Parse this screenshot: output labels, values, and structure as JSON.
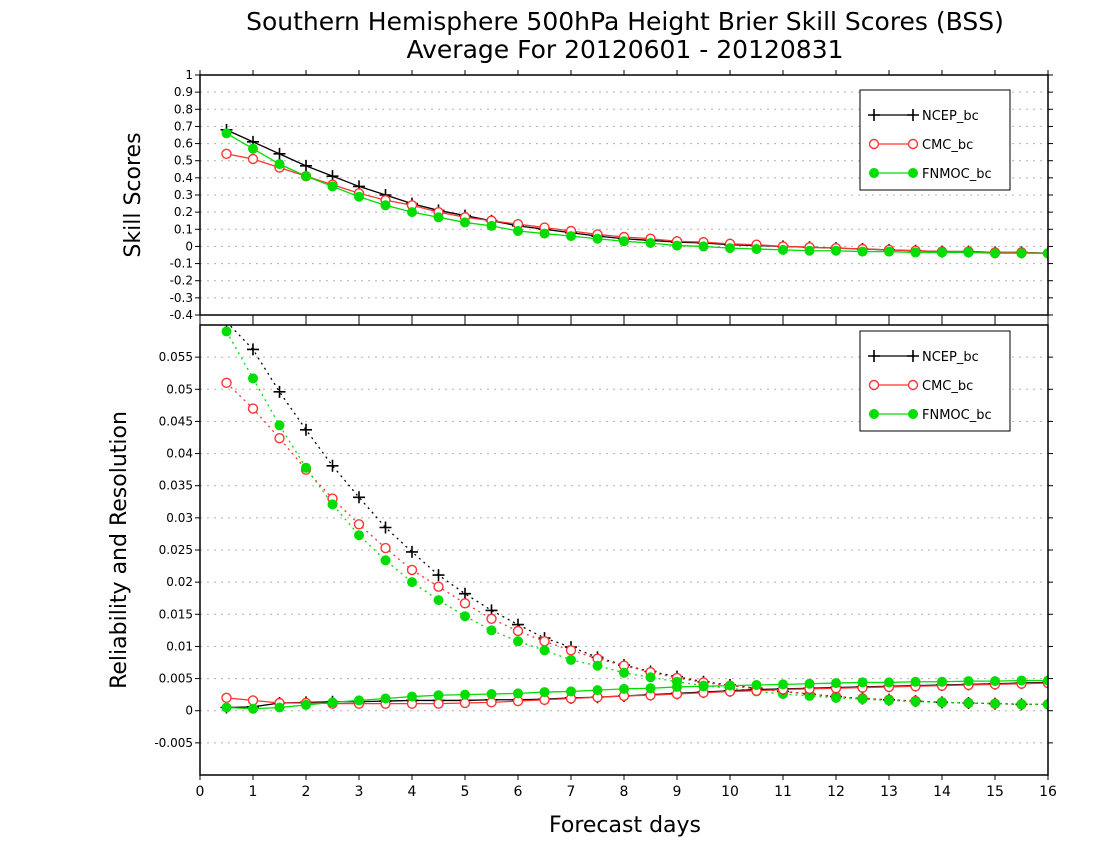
{
  "title_line1": "Southern Hemisphere 500hPa Height Brier Skill Scores (BSS)",
  "title_line2": "Average For 20120601 - 20120831",
  "colors": {
    "NCEP_bc": "#000000",
    "CMC_bc": "#ff3333",
    "FNMOC_bc": "#00dd00",
    "grid": "#b0b0b0"
  },
  "chart_data": [
    {
      "type": "line",
      "ylabel": "Skill Scores",
      "xlabel": "Forecast days",
      "xlim": [
        0,
        16
      ],
      "ylim": [
        -0.4,
        1
      ],
      "yticks": [
        1,
        0.9,
        0.8,
        0.7,
        0.6,
        0.5,
        0.4,
        0.3,
        0.2,
        0.1,
        0,
        -0.1,
        -0.2,
        -0.3,
        -0.4
      ],
      "ytick_labels": [
        "1",
        "0.9",
        "0.8",
        "0.7",
        "0.6",
        "0.5",
        "0.4",
        "0.3",
        "0.2",
        "0.1",
        "0",
        "-0.1",
        "-0.2",
        "-0.3",
        "-0.4"
      ],
      "legend_position": "top-right",
      "grid": true,
      "x": [
        0.5,
        1,
        1.5,
        2,
        2.5,
        3,
        3.5,
        4,
        4.5,
        5,
        5.5,
        6,
        6.5,
        7,
        7.5,
        8,
        8.5,
        9,
        9.5,
        10,
        10.5,
        11,
        11.5,
        12,
        12.5,
        13,
        13.5,
        14,
        14.5,
        15,
        15.5,
        16
      ],
      "series": [
        {
          "name": "NCEP_bc",
          "marker": "plus",
          "style": "solid",
          "values": [
            0.68,
            0.61,
            0.54,
            0.47,
            0.41,
            0.35,
            0.3,
            0.25,
            0.21,
            0.18,
            0.15,
            0.12,
            0.1,
            0.08,
            0.06,
            0.045,
            0.035,
            0.025,
            0.02,
            0.01,
            0.005,
            0.0,
            -0.005,
            -0.01,
            -0.015,
            -0.02,
            -0.025,
            -0.03,
            -0.03,
            -0.035,
            -0.035,
            -0.04
          ]
        },
        {
          "name": "CMC_bc",
          "marker": "circle-open",
          "style": "solid",
          "values": [
            0.54,
            0.51,
            0.46,
            0.41,
            0.36,
            0.31,
            0.27,
            0.24,
            0.2,
            0.17,
            0.15,
            0.13,
            0.11,
            0.09,
            0.07,
            0.055,
            0.045,
            0.03,
            0.025,
            0.015,
            0.01,
            0.0,
            -0.005,
            -0.01,
            -0.015,
            -0.02,
            -0.025,
            -0.03,
            -0.03,
            -0.035,
            -0.035,
            -0.04
          ]
        },
        {
          "name": "FNMOC_bc",
          "marker": "circle-filled",
          "style": "solid",
          "values": [
            0.66,
            0.57,
            0.48,
            0.41,
            0.35,
            0.29,
            0.24,
            0.2,
            0.17,
            0.14,
            0.12,
            0.09,
            0.075,
            0.06,
            0.045,
            0.03,
            0.02,
            0.005,
            0.0,
            -0.01,
            -0.015,
            -0.02,
            -0.025,
            -0.025,
            -0.03,
            -0.03,
            -0.035,
            -0.035,
            -0.035,
            -0.04,
            -0.04,
            -0.04
          ]
        }
      ]
    },
    {
      "type": "line",
      "ylabel": "Reliability and Resolution",
      "xlabel": "Forecast days",
      "xlim": [
        0,
        16
      ],
      "ylim": [
        -0.01,
        0.06
      ],
      "yticks": [
        0.055,
        0.05,
        0.045,
        0.04,
        0.035,
        0.03,
        0.025,
        0.02,
        0.015,
        0.01,
        0.005,
        0,
        -0.005
      ],
      "ytick_labels": [
        "0.055",
        "0.05",
        "0.045",
        "0.04",
        "0.035",
        "0.03",
        "0.025",
        "0.02",
        "0.015",
        "0.01",
        "0.005",
        "0",
        "-0.005"
      ],
      "xticks": [
        0,
        1,
        2,
        3,
        4,
        5,
        6,
        7,
        8,
        9,
        10,
        11,
        12,
        13,
        14,
        15,
        16
      ],
      "xtick_labels": [
        "0",
        "1",
        "2",
        "3",
        "4",
        "5",
        "6",
        "7",
        "8",
        "9",
        "10",
        "11",
        "12",
        "13",
        "14",
        "15",
        "16"
      ],
      "legend_position": "top-right",
      "grid": true,
      "x": [
        0.5,
        1,
        1.5,
        2,
        2.5,
        3,
        3.5,
        4,
        4.5,
        5,
        5.5,
        6,
        6.5,
        7,
        7.5,
        8,
        8.5,
        9,
        9.5,
        10,
        10.5,
        11,
        11.5,
        12,
        12.5,
        13,
        13.5,
        14,
        14.5,
        15,
        15.5,
        16
      ],
      "series": [
        {
          "name": "NCEP_bc",
          "metric": "Reliability",
          "marker": "plus",
          "style": "dotted",
          "values": [
            0.0605,
            0.0562,
            0.0496,
            0.0437,
            0.0381,
            0.0332,
            0.0285,
            0.0247,
            0.0211,
            0.0182,
            0.0156,
            0.0134,
            0.0113,
            0.0099,
            0.0083,
            0.0071,
            0.0061,
            0.0053,
            0.0045,
            0.004,
            0.0035,
            0.003,
            0.0026,
            0.0022,
            0.0019,
            0.0017,
            0.0015,
            0.0013,
            0.0012,
            0.0011,
            0.001,
            0.001
          ]
        },
        {
          "name": "CMC_bc",
          "metric": "Reliability",
          "marker": "circle-open",
          "style": "dotted",
          "values": [
            0.051,
            0.047,
            0.0424,
            0.0375,
            0.033,
            0.029,
            0.0253,
            0.0219,
            0.0193,
            0.0167,
            0.0143,
            0.0124,
            0.0108,
            0.0094,
            0.0081,
            0.007,
            0.006,
            0.0051,
            0.0044,
            0.0039,
            0.0034,
            0.003,
            0.0026,
            0.0022,
            0.0019,
            0.0017,
            0.0015,
            0.0013,
            0.0012,
            0.0011,
            0.001,
            0.001
          ]
        },
        {
          "name": "FNMOC_bc",
          "metric": "Reliability",
          "marker": "circle-filled",
          "style": "dotted",
          "values": [
            0.059,
            0.0517,
            0.0444,
            0.0378,
            0.0321,
            0.0273,
            0.0234,
            0.02,
            0.0172,
            0.0147,
            0.0125,
            0.0108,
            0.0094,
            0.0079,
            0.007,
            0.0059,
            0.0052,
            0.0045,
            0.0039,
            0.0035,
            0.003,
            0.0026,
            0.0023,
            0.002,
            0.0018,
            0.0016,
            0.0014,
            0.0013,
            0.0012,
            0.0011,
            0.001,
            0.001
          ]
        },
        {
          "name": "NCEP_bc",
          "metric": "Resolution",
          "marker": "plus",
          "style": "solid",
          "values": [
            0.0005,
            0.0006,
            0.0012,
            0.0013,
            0.0014,
            0.0014,
            0.0015,
            0.0016,
            0.0016,
            0.0016,
            0.0017,
            0.0017,
            0.0018,
            0.002,
            0.0021,
            0.0023,
            0.0025,
            0.0027,
            0.0029,
            0.0031,
            0.0033,
            0.0034,
            0.0035,
            0.0036,
            0.0037,
            0.0038,
            0.0039,
            0.004,
            0.0041,
            0.0042,
            0.0043,
            0.0044
          ]
        },
        {
          "name": "CMC_bc",
          "metric": "Resolution",
          "marker": "circle-open",
          "style": "solid",
          "values": [
            0.002,
            0.0016,
            0.0012,
            0.0012,
            0.0011,
            0.0011,
            0.0011,
            0.0011,
            0.0011,
            0.0012,
            0.0013,
            0.0015,
            0.0017,
            0.0019,
            0.0021,
            0.0023,
            0.0024,
            0.0026,
            0.0028,
            0.003,
            0.0031,
            0.0033,
            0.0034,
            0.0035,
            0.0036,
            0.0037,
            0.0038,
            0.0039,
            0.004,
            0.0041,
            0.0042,
            0.0043
          ]
        },
        {
          "name": "FNMOC_bc",
          "metric": "Resolution",
          "marker": "circle-filled",
          "style": "solid",
          "values": [
            0.0005,
            0.0003,
            0.0005,
            0.0009,
            0.0013,
            0.0016,
            0.0019,
            0.0022,
            0.0024,
            0.0025,
            0.0026,
            0.0027,
            0.0029,
            0.003,
            0.0032,
            0.0034,
            0.0035,
            0.0037,
            0.0038,
            0.0039,
            0.004,
            0.0041,
            0.0042,
            0.0043,
            0.0044,
            0.0044,
            0.0045,
            0.0045,
            0.0046,
            0.0046,
            0.0047,
            0.0047
          ]
        }
      ]
    }
  ]
}
